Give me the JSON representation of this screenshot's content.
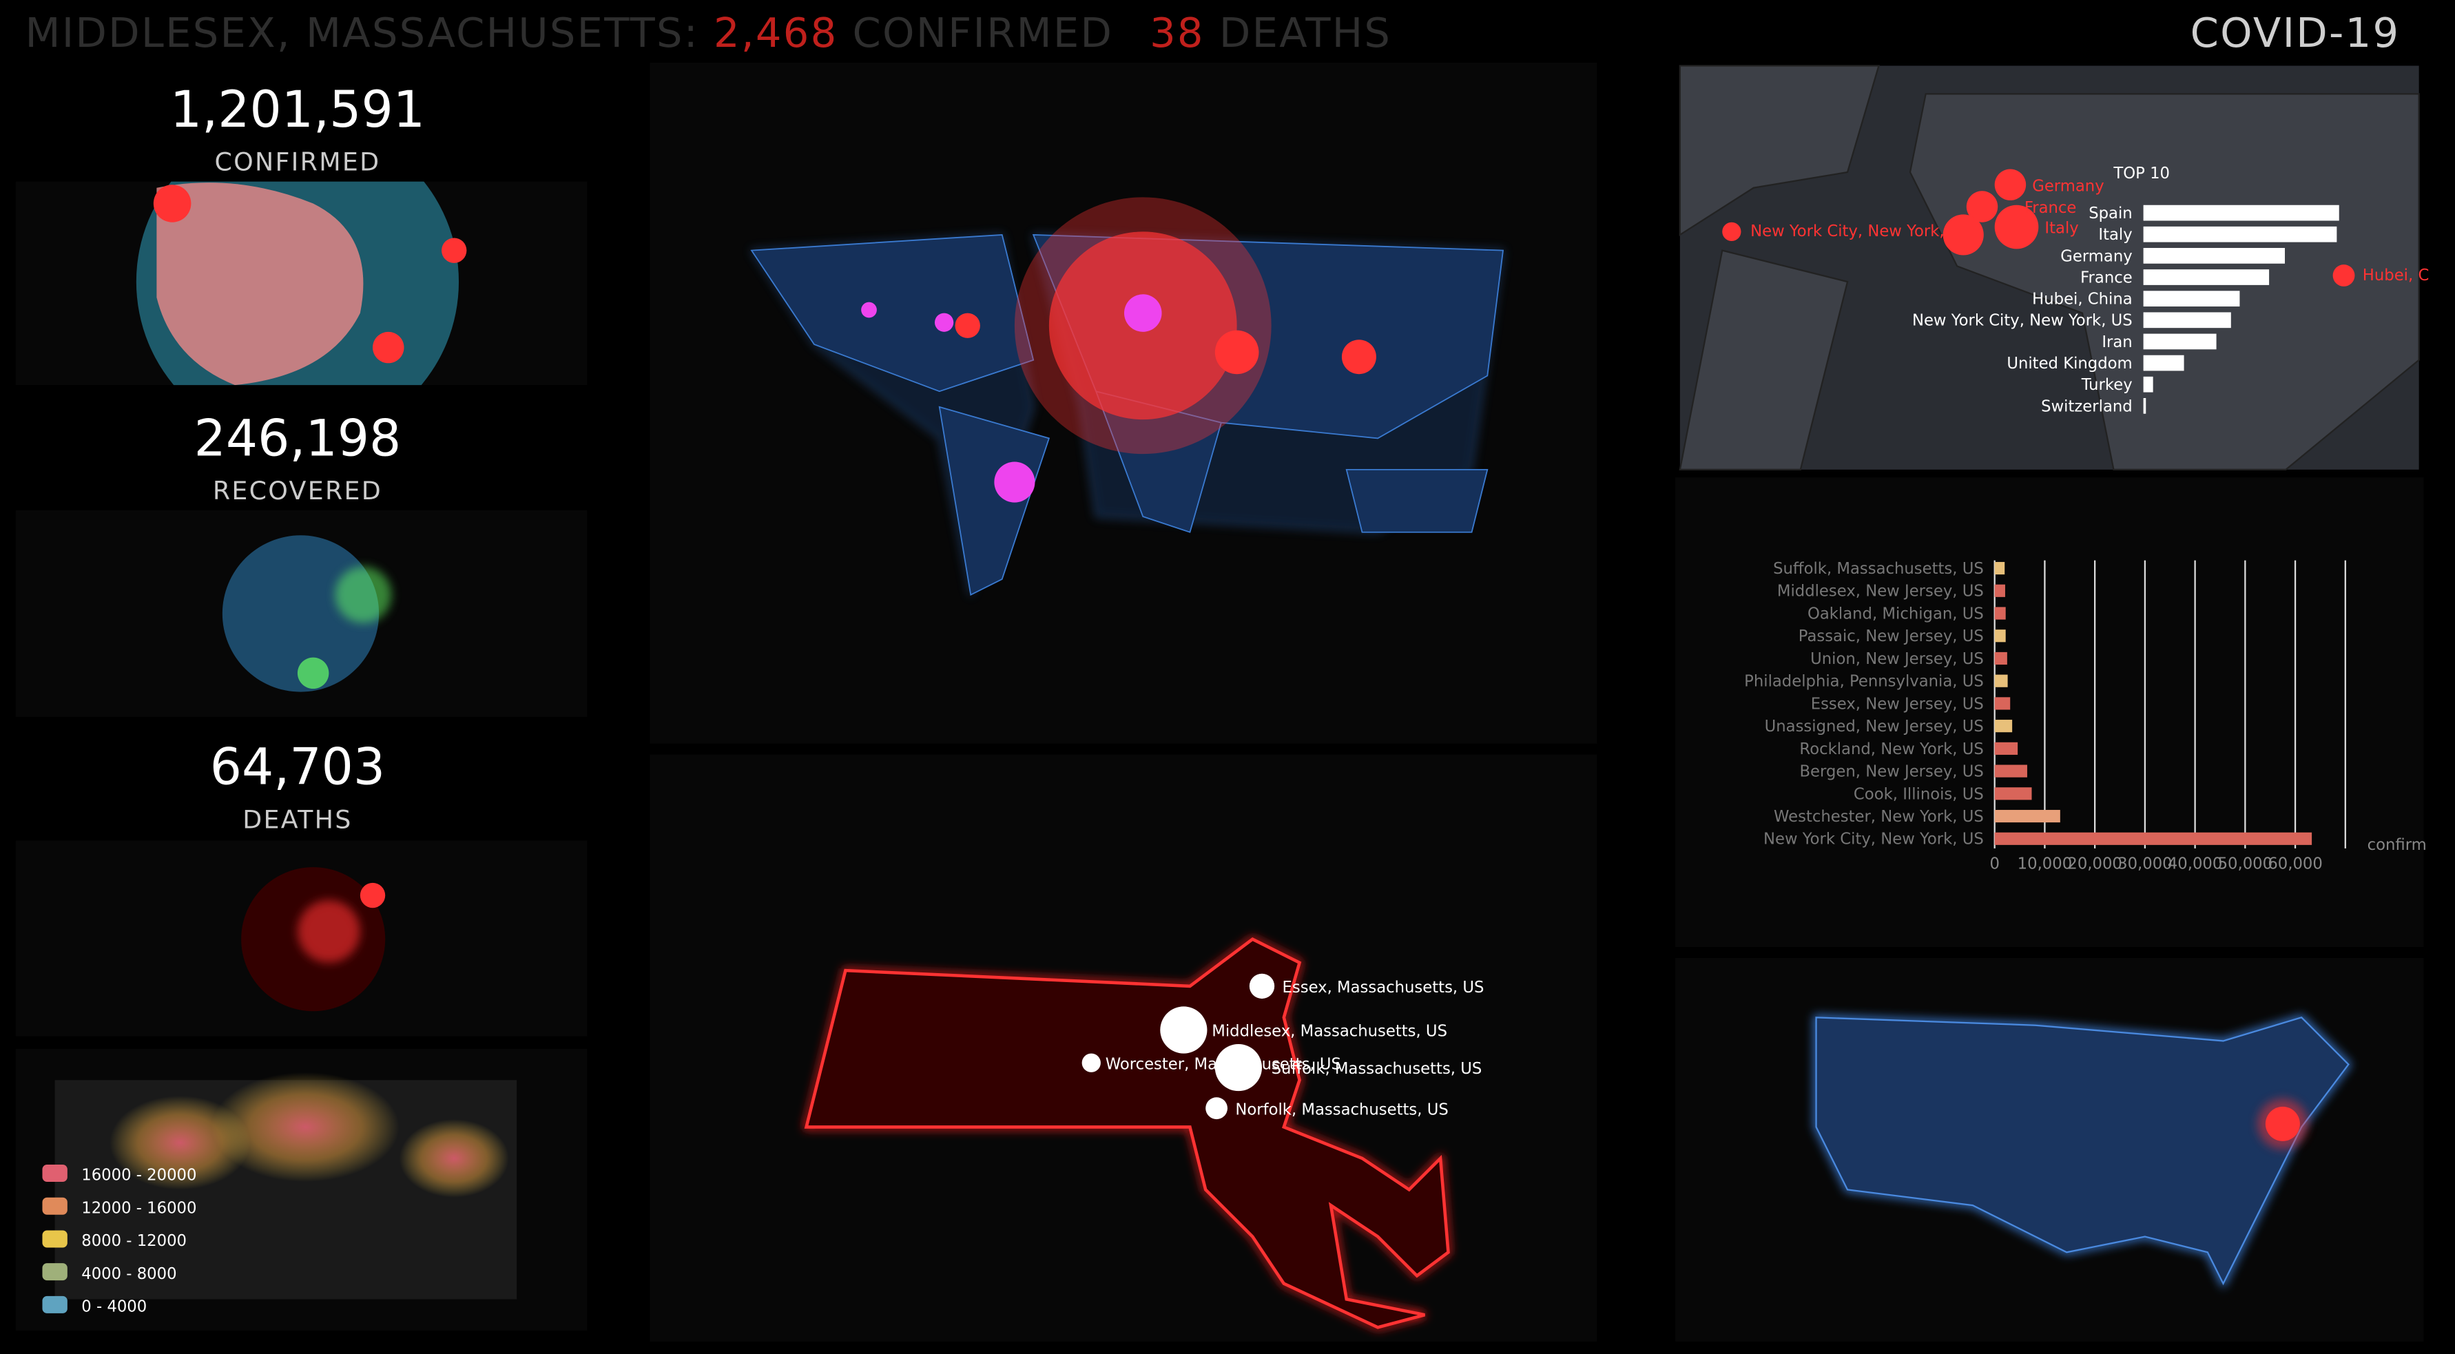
{
  "header": {
    "location": "MIDDLESEX, MASSACHUSETTS:",
    "confirmed": "2,468",
    "confirmed_label": "CONFIRMED",
    "deaths": "38",
    "deaths_label": "DEATHS",
    "app_title": "COVID-19"
  },
  "stats": [
    {
      "value": "1,201,591",
      "label": "CONFIRMED"
    },
    {
      "value": "246,198",
      "label": "RECOVERED"
    },
    {
      "value": "64,703",
      "label": "DEATHS"
    }
  ],
  "legend": [
    {
      "label": "16000 - 20000",
      "color": "#e06070"
    },
    {
      "label": "12000 - 16000",
      "color": "#e08a5a"
    },
    {
      "label": "8000 - 12000",
      "color": "#e8c64a"
    },
    {
      "label": "4000 - 8000",
      "color": "#9fb07a"
    },
    {
      "label": "0 - 4000",
      "color": "#5fa3c0"
    }
  ],
  "world_map_labels": [
    "Germany",
    "France",
    "Italy",
    "New York City, New York,",
    "Hubei, C"
  ],
  "top10_chart": {
    "type": "bar",
    "title": "TOP 10",
    "categories": [
      "Spain",
      "Italy",
      "Germany",
      "France",
      "Hubei, China",
      "New York City, New York, US",
      "Iran",
      "United Kingdom",
      "Turkey",
      "Switzerland"
    ],
    "values": [
      119199,
      118000,
      91159,
      83000,
      67801,
      63306,
      55743,
      39000,
      23000,
      19303
    ],
    "xlim": [
      18000,
      120000
    ],
    "color": "#ffffff"
  },
  "county_chart": {
    "type": "bar",
    "categories": [
      "Suffolk, Massachusetts, US",
      "Middlesex, New Jersey, US",
      "Oakland, Michigan, US",
      "Passaic, New Jersey, US",
      "Union, New Jersey, US",
      "Philadelphia, Pennsylvania, US",
      "Essex, New Jersey, US",
      "Unassigned, New Jersey, US",
      "Rockland, New York, US",
      "Bergen, New Jersey, US",
      "Cook, Illinois, US",
      "Westchester, New York, US",
      "New York City, New York, US"
    ],
    "values": [
      2000,
      2100,
      2200,
      2200,
      2500,
      2600,
      3100,
      3500,
      4600,
      6500,
      7400,
      13081,
      63306
    ],
    "colors": [
      "#e8c07a",
      "#d9655a",
      "#d9655a",
      "#e8c07a",
      "#d9655a",
      "#e8c07a",
      "#d9655a",
      "#e8c07a",
      "#d9655a",
      "#d9655a",
      "#d9655a",
      "#e8a07a",
      "#d9655a"
    ],
    "xlim": [
      0,
      70000
    ],
    "xticks": [
      0,
      {
        "value": 10000,
        "label": "10,000"
      },
      {
        "value": 20000,
        "label": "20,000"
      },
      {
        "value": 30000,
        "label": "30,000"
      },
      {
        "value": 40000,
        "label": "40,000"
      },
      {
        "value": 50000,
        "label": "50,000"
      },
      {
        "value": 60000,
        "label": "60,000"
      }
    ],
    "xlabel": "confirm",
    "grid": true
  },
  "ma_labels": [
    "Essex, Massachusetts, US",
    "Middlesex, Massachusetts, US",
    "Worcester, Massachusetts, US",
    "Suffolk, Massachusetts, US",
    "Norfolk, Massachusetts, US"
  ]
}
